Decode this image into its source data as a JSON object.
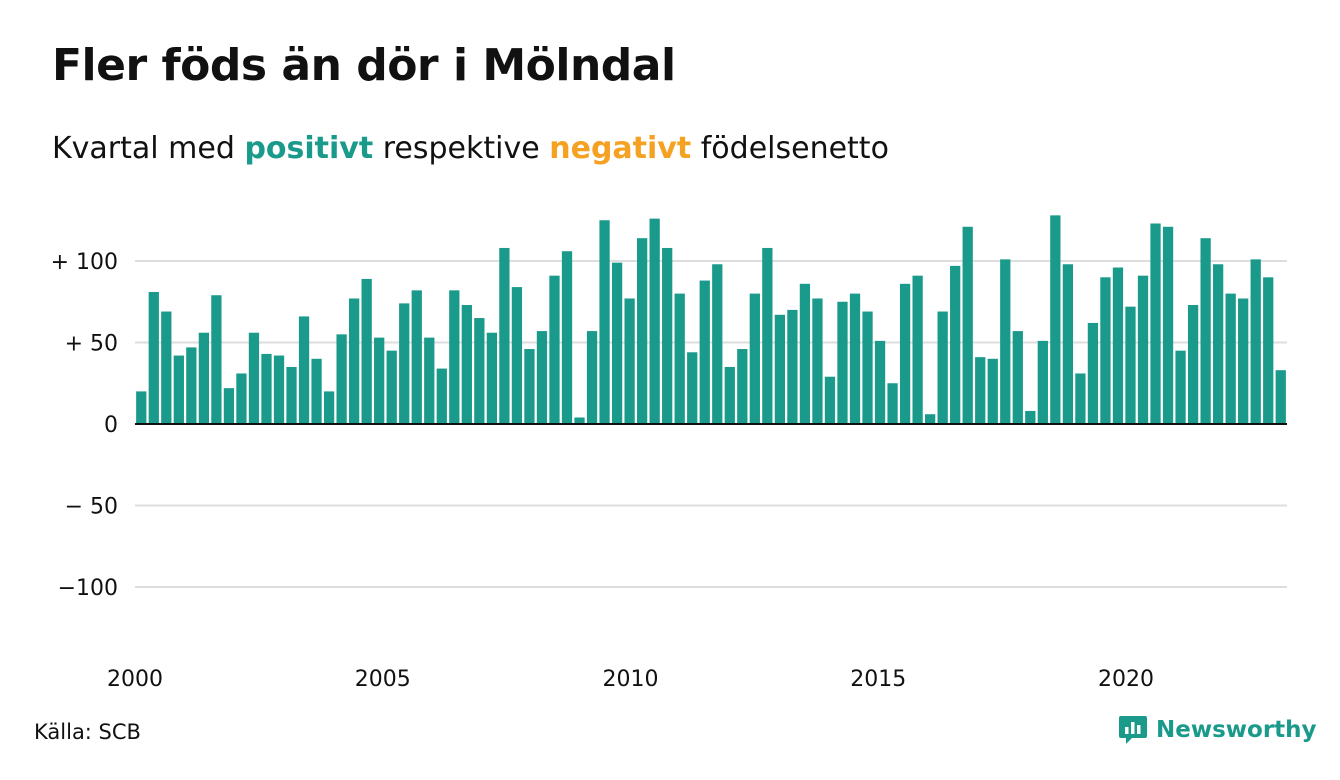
{
  "title": "Fler föds än dör i Mölndal",
  "subtitle": {
    "prefix": "Kvartal med",
    "positive_word": "positivt",
    "middle": "respektive",
    "negative_word": "negativt",
    "suffix": "födelsenetto"
  },
  "source": "Källa: SCB",
  "brand": {
    "name": "Newsworthy",
    "icon": "newsworthy-logo-icon"
  },
  "colors": {
    "positive": "#1a9a8a",
    "negative": "#f5a122",
    "grid": "#dddddd",
    "axis": "#111111",
    "text": "#111111"
  },
  "chart_data": {
    "type": "bar",
    "title": "Fler föds än dör i Mölndal",
    "subtitle": "Kvartal med positivt respektive negativt födelsenetto",
    "xlabel": "",
    "ylabel": "",
    "ylim": [
      -135,
      135
    ],
    "xlim": [
      2000,
      2023.25
    ],
    "grid": true,
    "yticks": [
      {
        "value": 100,
        "label": "+ 100"
      },
      {
        "value": 50,
        "label": "+  50"
      },
      {
        "value": 0,
        "label": "0"
      },
      {
        "value": -50,
        "label": "− 50"
      },
      {
        "value": -100,
        "label": "−100"
      }
    ],
    "xticks": [
      {
        "value": 2000,
        "label": "2000"
      },
      {
        "value": 2005,
        "label": "2005"
      },
      {
        "value": 2010,
        "label": "2010"
      },
      {
        "value": 2015,
        "label": "2015"
      },
      {
        "value": 2020,
        "label": "2020"
      }
    ],
    "first_quarter": "2000 Q1",
    "series": [
      {
        "values": [
          20,
          81,
          69,
          42,
          47,
          56,
          79,
          22,
          31,
          56,
          43,
          42,
          35,
          66,
          40,
          20,
          55,
          77,
          89,
          53,
          45,
          74,
          82,
          53,
          34,
          82,
          73,
          65,
          56,
          108,
          84,
          46,
          57,
          91,
          106,
          4,
          57,
          125,
          99,
          77,
          114,
          126,
          108,
          80,
          44,
          88,
          98,
          35,
          46,
          80,
          108,
          67,
          70,
          86,
          77,
          29,
          75,
          80,
          69,
          51,
          25,
          86,
          91,
          6,
          69,
          97,
          121,
          41,
          40,
          101,
          57,
          8,
          51,
          128,
          98,
          31,
          62,
          90,
          96,
          72,
          91,
          123,
          121,
          45,
          73,
          114,
          98,
          80,
          77,
          101,
          90,
          33
        ]
      }
    ]
  }
}
